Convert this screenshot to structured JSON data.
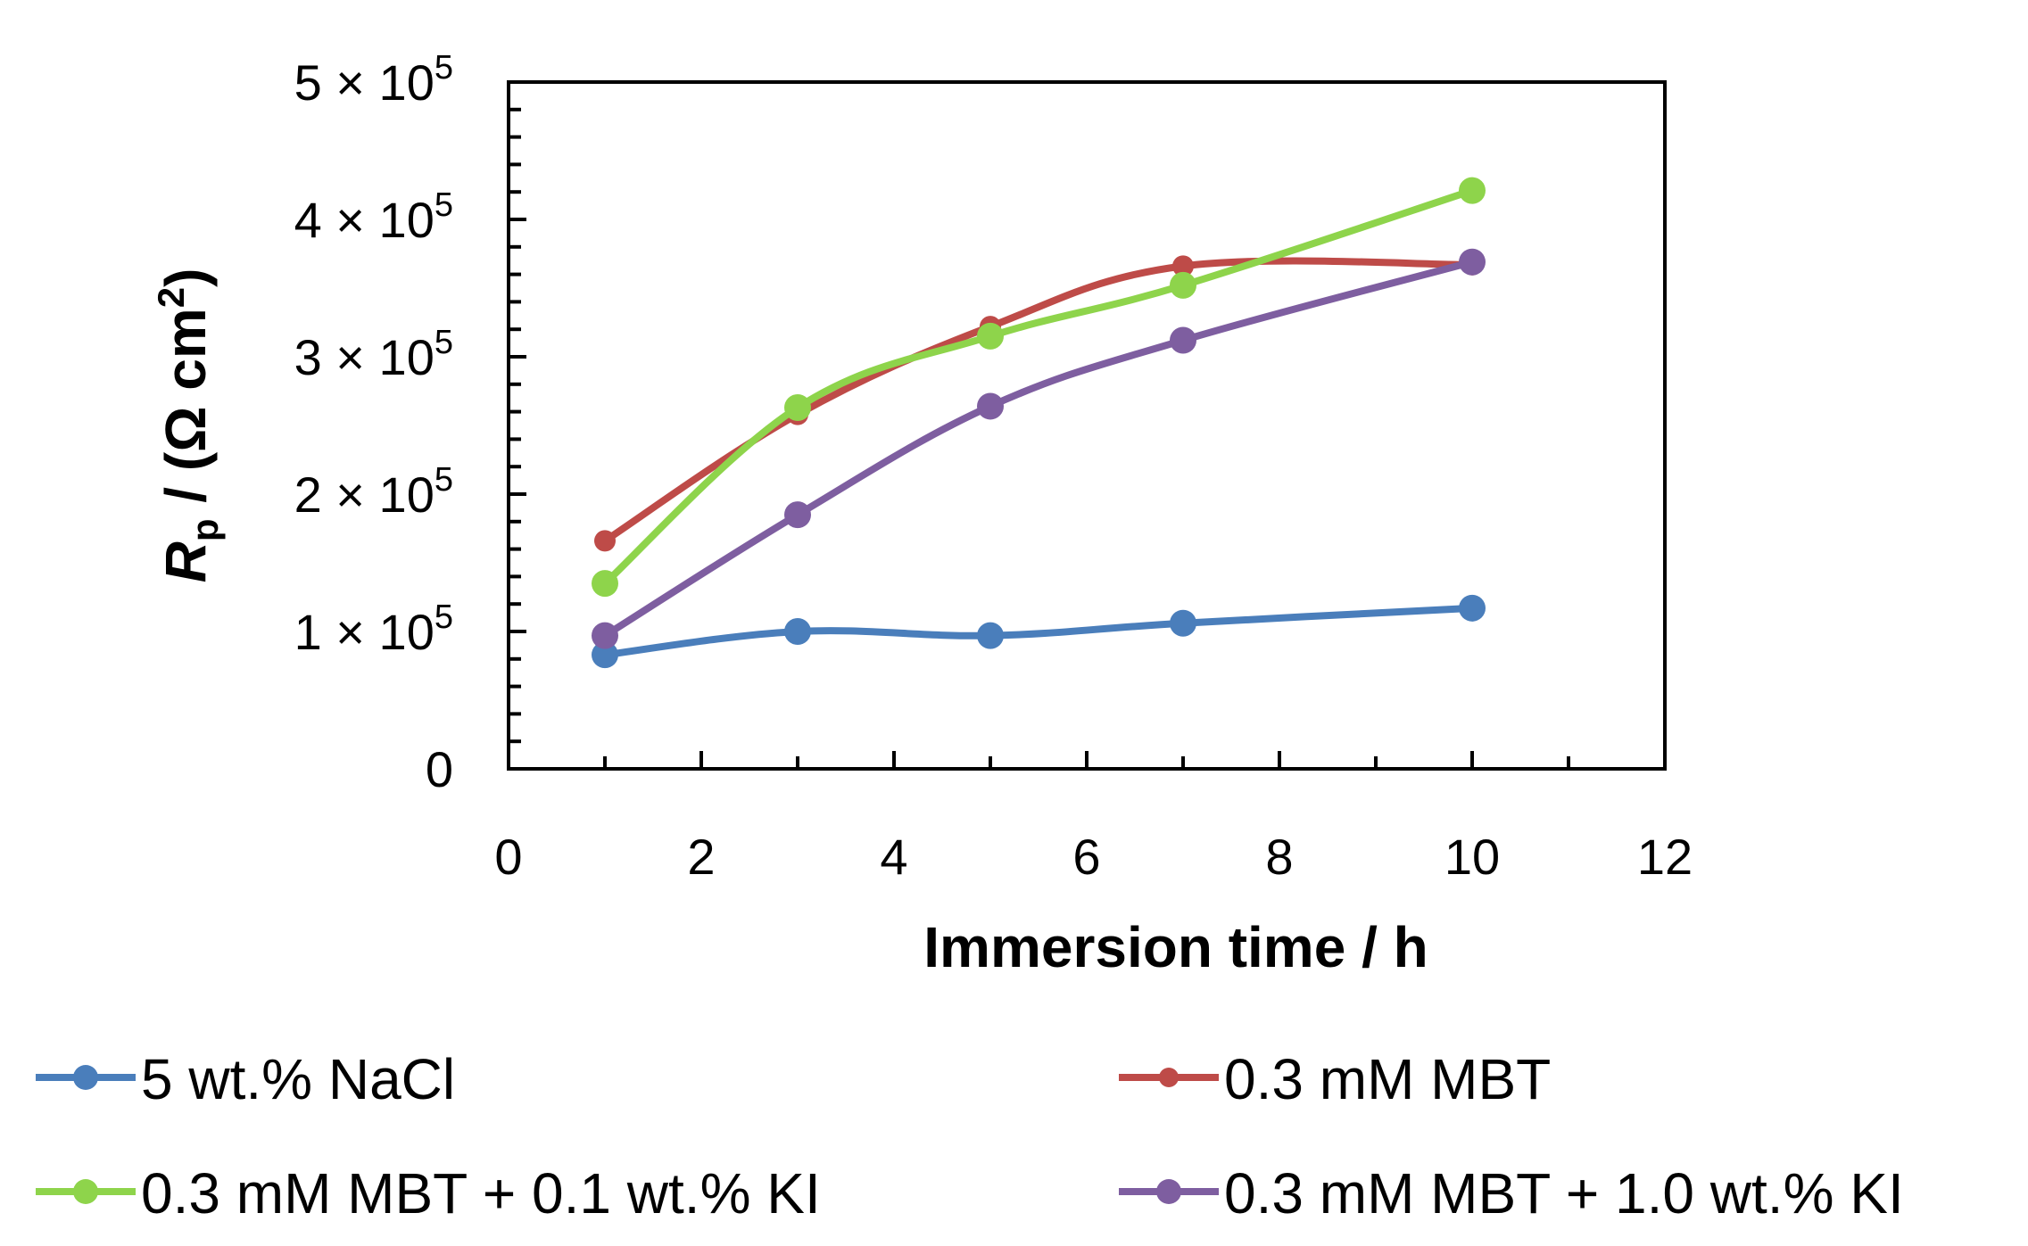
{
  "chart_data": {
    "type": "line",
    "title": "",
    "xlabel": "Immersion time / h",
    "ylabel": {
      "var": "R",
      "sub": "p",
      "rest": " / (Ω cm",
      "sup": "2",
      "close": ")"
    },
    "xlim": [
      0,
      12
    ],
    "ylim": [
      0,
      500000
    ],
    "xticks": [
      0,
      2,
      4,
      6,
      8,
      10,
      12
    ],
    "xtick_labels": [
      "0",
      "2",
      "4",
      "6",
      "8",
      "10",
      "12"
    ],
    "yticks": [
      0,
      100000,
      200000,
      300000,
      400000,
      500000
    ],
    "ytick_labels": [
      {
        "mantissa": "0",
        "exp": ""
      },
      {
        "mantissa": "1 × 10",
        "exp": "5"
      },
      {
        "mantissa": "2 × 10",
        "exp": "5"
      },
      {
        "mantissa": "3 × 10",
        "exp": "5"
      },
      {
        "mantissa": "4 × 10",
        "exp": "5"
      },
      {
        "mantissa": "5 × 10",
        "exp": "5"
      }
    ],
    "grid": false,
    "legend_position": "bottom",
    "x": [
      1,
      3,
      5,
      7,
      10
    ],
    "series": [
      {
        "name": "5 wt.% NaCl",
        "color": "#4a7ebb",
        "values": [
          83000,
          100000,
          97000,
          106000,
          117000
        ]
      },
      {
        "name": "0.3 mM MBT",
        "color": "#be4b48",
        "values": [
          166000,
          258000,
          322000,
          366000,
          367000
        ]
      },
      {
        "name": "0.3 mM MBT + 0.1 wt.% KI",
        "color": "#8ed44b",
        "values": [
          135000,
          263000,
          315000,
          352000,
          421000
        ]
      },
      {
        "name": "0.3 mM MBT + 1.0 wt.% KI",
        "color": "#7e5ea0",
        "values": [
          97000,
          185000,
          264000,
          312000,
          369000
        ]
      }
    ]
  }
}
